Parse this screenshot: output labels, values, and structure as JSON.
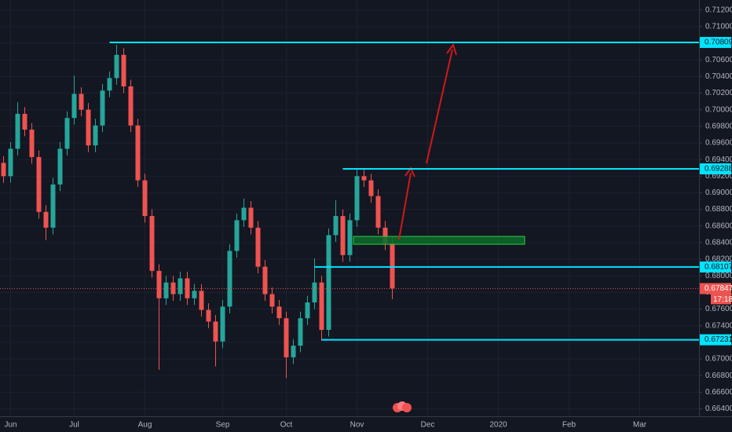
{
  "chart_data": {
    "type": "candlestick",
    "categories": [
      null,
      "Jun",
      null,
      null,
      null,
      null,
      null,
      null,
      null,
      null,
      "Jul",
      null,
      null,
      null,
      null,
      null,
      null,
      null,
      null,
      null,
      "Aug",
      null,
      null,
      null,
      null,
      null,
      null,
      null,
      null,
      null,
      null,
      "Sep",
      null,
      null,
      null,
      null,
      null,
      null,
      null,
      null,
      "Oct",
      null,
      null,
      null,
      null,
      null,
      null,
      null,
      null,
      null,
      "Nov",
      null,
      null,
      null,
      null,
      null,
      null,
      null,
      null,
      null,
      "Dec",
      null,
      null,
      null,
      null,
      null,
      null,
      null,
      null,
      null,
      "2020",
      null,
      null,
      null,
      null,
      null,
      null,
      null,
      null,
      null,
      "Feb",
      null,
      null,
      null,
      null,
      null,
      null,
      null,
      null,
      null,
      "Mar",
      null,
      null,
      null,
      null,
      null,
      null,
      null,
      null
    ],
    "open": [
      0.6936,
      0.692,
      0.6953,
      0.6995,
      0.6976,
      0.6943,
      0.6877,
      0.6858,
      0.691,
      0.6953,
      0.699,
      0.7019,
      0.7,
      0.6957,
      0.6981,
      0.7023,
      0.7038,
      0.7066,
      0.7028,
      0.6981,
      0.6915,
      0.6872,
      0.6806,
      0.6773,
      0.6792,
      0.6778,
      0.6797,
      0.6773,
      0.6782,
      0.6759,
      0.6745,
      0.6721,
      0.6763,
      0.683,
      0.6867,
      0.6882,
      0.6858,
      0.6811,
      0.6778,
      0.6763,
      0.6749,
      0.6702,
      0.6716,
      0.6749,
      0.6768,
      0.6792,
      0.6735,
      0.6849,
      0.6872,
      0.6825,
      0.6867,
      0.692,
      0.6915,
      0.6896,
      0.6858,
      0.6839,
      null,
      null,
      null,
      null,
      null,
      null,
      null,
      null,
      null,
      null,
      null,
      null,
      null,
      null,
      null,
      null,
      null,
      null,
      null,
      null,
      null,
      null,
      null,
      null,
      null,
      null,
      null,
      null,
      null,
      null,
      null,
      null,
      null,
      null,
      null,
      null,
      null,
      null,
      null,
      null,
      null,
      null,
      null
    ],
    "high": [
      0.6944,
      0.6961,
      0.7009,
      0.7003,
      0.6984,
      0.6951,
      0.6885,
      0.6918,
      0.6961,
      0.6998,
      0.7041,
      0.7027,
      0.7008,
      0.6989,
      0.7031,
      0.7046,
      0.7078,
      0.7074,
      0.7036,
      0.6989,
      0.6923,
      0.688,
      0.6814,
      0.68,
      0.68,
      0.6805,
      0.6805,
      0.679,
      0.679,
      0.6767,
      0.6753,
      0.6771,
      0.6838,
      0.6875,
      0.6893,
      0.689,
      0.6866,
      0.6819,
      0.6786,
      0.6771,
      0.6757,
      0.6724,
      0.6757,
      0.6776,
      0.6821,
      0.68,
      0.6857,
      0.6891,
      0.688,
      0.6875,
      0.6929,
      0.6928,
      0.6923,
      0.6904,
      0.6866,
      0.6847,
      null,
      null,
      null,
      null,
      null,
      null,
      null,
      null,
      null,
      null,
      null,
      null,
      null,
      null,
      null,
      null,
      null,
      null,
      null,
      null,
      null,
      null,
      null,
      null,
      null,
      null,
      null,
      null,
      null,
      null,
      null,
      null,
      null,
      null,
      null,
      null,
      null,
      null,
      null,
      null,
      null,
      null,
      null
    ],
    "low": [
      0.6912,
      0.6912,
      0.6945,
      0.6968,
      0.6935,
      0.6869,
      0.6843,
      0.685,
      0.6902,
      0.6945,
      0.6982,
      0.6992,
      0.6949,
      0.6949,
      0.6973,
      0.7015,
      0.703,
      0.702,
      0.6973,
      0.6907,
      0.6864,
      0.6798,
      0.6687,
      0.6765,
      0.677,
      0.677,
      0.6765,
      0.6765,
      0.6751,
      0.6737,
      0.6691,
      0.6713,
      0.6755,
      0.6822,
      0.6859,
      0.685,
      0.6803,
      0.677,
      0.6755,
      0.6741,
      0.6677,
      0.6694,
      0.6708,
      0.6741,
      0.676,
      0.6722,
      0.6727,
      0.6841,
      0.6817,
      0.6817,
      0.6859,
      0.6907,
      0.6888,
      0.685,
      0.6831,
      0.6772,
      null,
      null,
      null,
      null,
      null,
      null,
      null,
      null,
      null,
      null,
      null,
      null,
      null,
      null,
      null,
      null,
      null,
      null,
      null,
      null,
      null,
      null,
      null,
      null,
      null,
      null,
      null,
      null,
      null,
      null,
      null,
      null,
      null,
      null,
      null,
      null,
      null,
      null,
      null,
      null,
      null,
      null,
      null
    ],
    "close": [
      0.692,
      0.6953,
      0.6995,
      0.6976,
      0.6943,
      0.6877,
      0.6858,
      0.691,
      0.6953,
      0.699,
      0.7019,
      0.7,
      0.6957,
      0.6981,
      0.7023,
      0.7038,
      0.7066,
      0.7028,
      0.6981,
      0.6915,
      0.6872,
      0.6806,
      0.6773,
      0.6792,
      0.6778,
      0.6797,
      0.6773,
      0.6782,
      0.6759,
      0.6745,
      0.6721,
      0.6763,
      0.683,
      0.6867,
      0.6882,
      0.6858,
      0.6811,
      0.6778,
      0.6763,
      0.6749,
      0.6702,
      0.6716,
      0.6749,
      0.6768,
      0.6792,
      0.6735,
      0.6849,
      0.6872,
      0.6825,
      0.6867,
      0.692,
      0.6915,
      0.6896,
      0.6858,
      0.6839,
      0.6785,
      null,
      null,
      null,
      null,
      null,
      null,
      null,
      null,
      null,
      null,
      null,
      null,
      null,
      null,
      null,
      null,
      null,
      null,
      null,
      null,
      null,
      null,
      null,
      null,
      null,
      null,
      null,
      null,
      null,
      null,
      null,
      null,
      null,
      null,
      null,
      null,
      null,
      null,
      null,
      null,
      null,
      null,
      null
    ],
    "up_color": "#26a69a",
    "down_color": "#ef5350",
    "ylim": [
      0.6631,
      0.7132
    ],
    "yticks": [
      {
        "value": 0.664,
        "label": "0.66400"
      },
      {
        "value": 0.666,
        "label": "0.66600"
      },
      {
        "value": 0.668,
        "label": "0.66800"
      },
      {
        "value": 0.67,
        "label": "0.67000"
      },
      {
        "value": 0.672,
        "label": "0.67200"
      },
      {
        "value": 0.674,
        "label": "0.67400"
      },
      {
        "value": 0.676,
        "label": "0.67600"
      },
      {
        "value": 0.678,
        "label": "0.67800"
      },
      {
        "value": 0.68,
        "label": "0.68000"
      },
      {
        "value": 0.682,
        "label": "0.68200"
      },
      {
        "value": 0.684,
        "label": "0.68400"
      },
      {
        "value": 0.686,
        "label": "0.68600"
      },
      {
        "value": 0.688,
        "label": "0.68800"
      },
      {
        "value": 0.69,
        "label": "0.69000"
      },
      {
        "value": 0.692,
        "label": "0.69200"
      },
      {
        "value": 0.694,
        "label": "0.69400"
      },
      {
        "value": 0.696,
        "label": "0.69600"
      },
      {
        "value": 0.698,
        "label": "0.69800"
      },
      {
        "value": 0.7,
        "label": "0.70000"
      },
      {
        "value": 0.702,
        "label": "0.70200"
      },
      {
        "value": 0.704,
        "label": "0.70400"
      },
      {
        "value": 0.706,
        "label": "0.70600"
      },
      {
        "value": 0.708,
        "label": "0.70800"
      },
      {
        "value": 0.71,
        "label": "0.71000"
      },
      {
        "value": 0.712,
        "label": "0.71200"
      }
    ],
    "grid": true,
    "levels": [
      {
        "value": 0.70809,
        "start": 15
      },
      {
        "value": 0.69288,
        "start": 48
      },
      {
        "value": 0.68107,
        "start": 44
      },
      {
        "value": 0.67231,
        "start": 45
      }
    ],
    "level_color": "#00e5ff",
    "current_price": {
      "value": 0.67847,
      "timer": "17:18",
      "color": "#ef5350"
    }
  }
}
